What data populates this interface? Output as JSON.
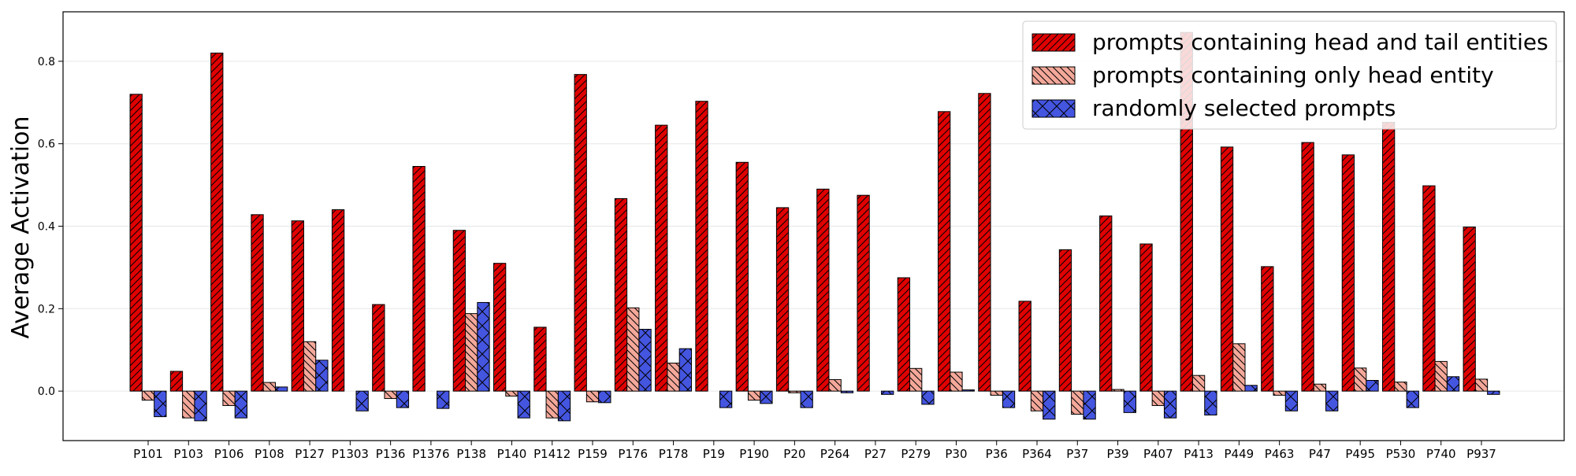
{
  "chart_data": {
    "type": "bar",
    "title": "",
    "xlabel": "",
    "ylabel": "Average Activation",
    "ylim": [
      -0.12,
      0.92
    ],
    "yticks": [
      0.0,
      0.2,
      0.4,
      0.6,
      0.8
    ],
    "grid": true,
    "legend_position": "top-right",
    "categories": [
      "P101",
      "P103",
      "P106",
      "P108",
      "P127",
      "P1303",
      "P136",
      "P1376",
      "P138",
      "P140",
      "P1412",
      "P159",
      "P176",
      "P178",
      "P19",
      "P190",
      "P20",
      "P264",
      "P27",
      "P279",
      "P30",
      "P36",
      "P364",
      "P37",
      "P39",
      "P407",
      "P413",
      "P449",
      "P463",
      "P47",
      "P495",
      "P530",
      "P740",
      "P937"
    ],
    "series": [
      {
        "name": "prompts containing head and tail entities",
        "color": "#e00000",
        "hatch": "diagonal",
        "values": [
          0.72,
          0.048,
          0.82,
          0.428,
          0.413,
          0.44,
          0.21,
          0.545,
          0.39,
          0.31,
          0.155,
          0.768,
          0.467,
          0.645,
          0.703,
          0.555,
          0.445,
          0.49,
          0.475,
          0.275,
          0.678,
          0.722,
          0.218,
          0.343,
          0.425,
          0.357,
          0.87,
          0.592,
          0.302,
          0.603,
          0.573,
          0.652,
          0.498,
          0.398
        ]
      },
      {
        "name": "prompts containing only head entity",
        "color": "#f4a89a",
        "hatch": "backdiagonal",
        "values": [
          -0.022,
          -0.065,
          -0.035,
          0.021,
          0.12,
          0.0,
          -0.018,
          0.0,
          0.188,
          -0.012,
          -0.065,
          -0.026,
          0.202,
          0.068,
          0.0,
          -0.022,
          -0.004,
          0.028,
          0.0,
          0.055,
          0.046,
          -0.01,
          -0.048,
          -0.056,
          0.004,
          -0.035,
          0.038,
          0.115,
          -0.01,
          0.017,
          0.056,
          0.022,
          0.072,
          0.029
        ]
      },
      {
        "name": "randomly selected prompts",
        "color": "#4455e0",
        "hatch": "cross",
        "values": [
          -0.062,
          -0.072,
          -0.065,
          0.01,
          0.075,
          -0.048,
          -0.04,
          -0.042,
          0.215,
          -0.065,
          -0.072,
          -0.028,
          0.15,
          0.103,
          -0.04,
          -0.03,
          -0.04,
          -0.004,
          -0.008,
          -0.032,
          0.003,
          -0.04,
          -0.068,
          -0.068,
          -0.052,
          -0.065,
          -0.058,
          0.014,
          -0.048,
          -0.048,
          0.026,
          -0.04,
          0.035,
          -0.008
        ]
      }
    ]
  }
}
